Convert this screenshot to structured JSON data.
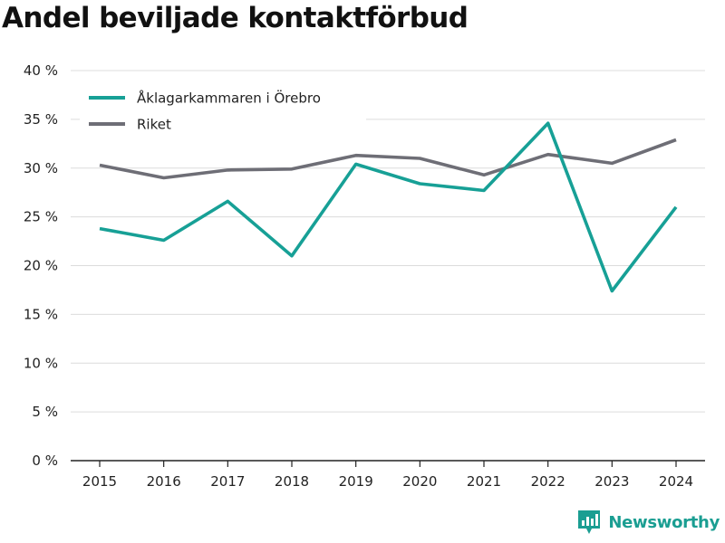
{
  "chart_data": {
    "type": "line",
    "title": "Andel beviljade kontaktförbud",
    "xlabel": "",
    "ylabel": "",
    "categories": [
      "2015",
      "2016",
      "2017",
      "2018",
      "2019",
      "2020",
      "2021",
      "2022",
      "2023",
      "2024"
    ],
    "series": [
      {
        "name": "Åklagarkammaren i Örebro",
        "color": "#17a096",
        "values": [
          23.8,
          22.6,
          26.6,
          21.0,
          30.4,
          28.4,
          27.7,
          34.6,
          17.4,
          26.0
        ]
      },
      {
        "name": "Riket",
        "color": "#6e6e76",
        "values": [
          30.3,
          29.0,
          29.8,
          29.9,
          31.3,
          31.0,
          29.3,
          31.4,
          30.5,
          32.9
        ]
      }
    ],
    "ylim": [
      0,
      40
    ],
    "yticks": [
      0,
      5,
      10,
      15,
      20,
      25,
      30,
      35,
      40
    ],
    "ytick_labels": [
      "0 %",
      "5 %",
      "10 %",
      "15 %",
      "20 %",
      "25 %",
      "30 %",
      "35 %",
      "40 %"
    ],
    "grid": true,
    "legend_position": "top-left"
  },
  "brand": {
    "name": "Newsworthy",
    "icon": "newsworthy-logo-icon",
    "color": "#1a9e92"
  }
}
